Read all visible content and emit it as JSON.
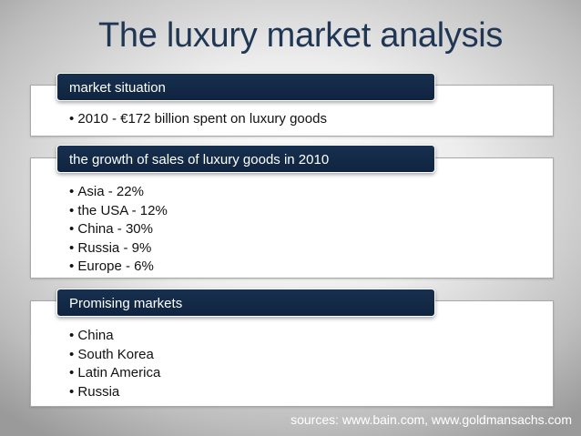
{
  "title": "The luxury market analysis",
  "sections": [
    {
      "header": "market situation",
      "bullets": [
        "2010 - €172 billion spent on luxury goods"
      ]
    },
    {
      "header": "the growth of sales of luxury goods in 2010",
      "bullets": [
        "Asia - 22%",
        "the USA - 12%",
        "China - 30%",
        "Russia - 9%",
        "Europe -  6%"
      ]
    },
    {
      "header": "Promising markets",
      "bullets": [
        "China",
        "South Korea",
        "Latin America",
        "Russia"
      ]
    }
  ],
  "sources": "sources: www.bain.com, www.goldmansachs.com"
}
